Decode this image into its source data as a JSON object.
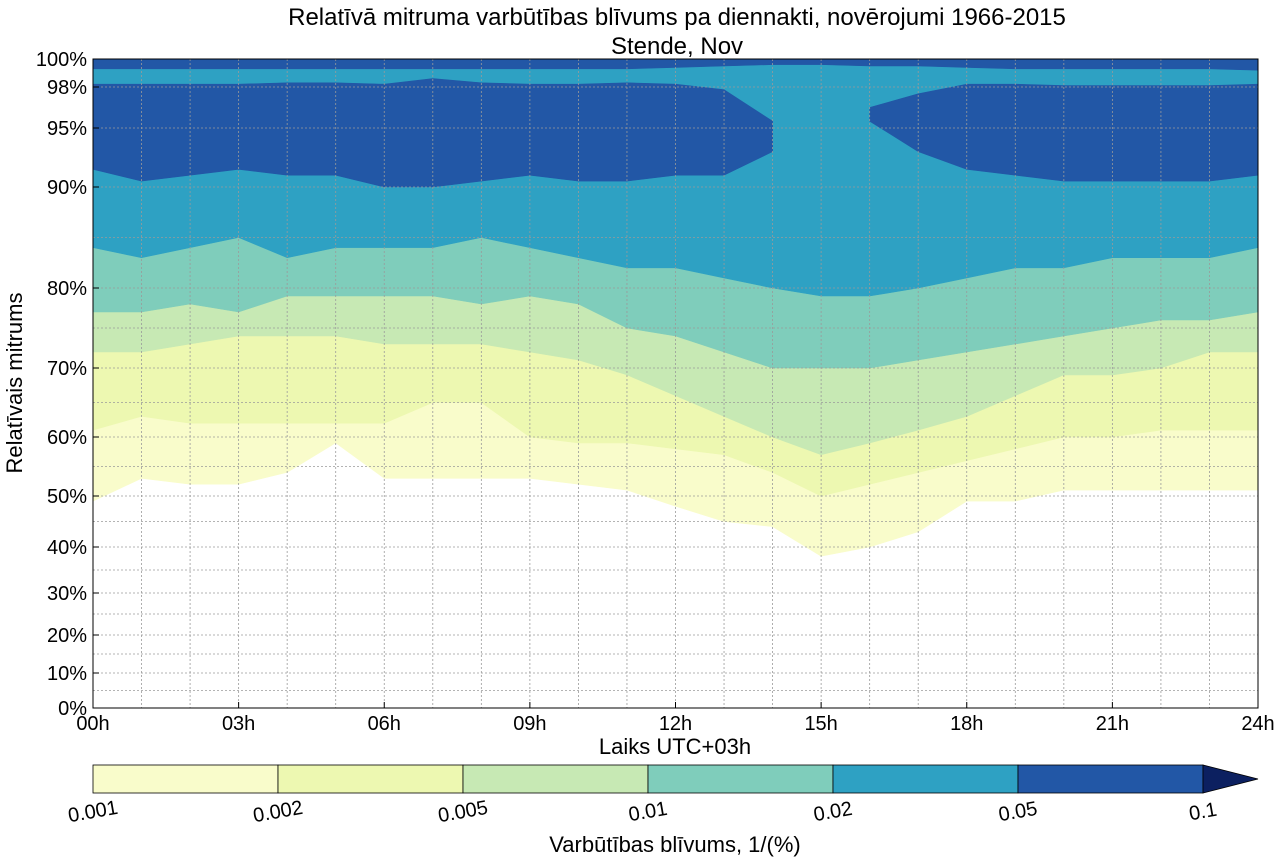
{
  "chart_data": {
    "type": "heatmap",
    "title": "Relatīvā mitruma varbūtības blīvums pa diennakti, novērojumi 1966-2015",
    "subtitle": "Stende, Nov",
    "xlabel": "Laiks UTC+03h",
    "ylabel": "Relatīvais mitrums",
    "x_ticks": [
      "00h",
      "03h",
      "06h",
      "09h",
      "12h",
      "15h",
      "18h",
      "21h",
      "24h"
    ],
    "x_tick_values": [
      0,
      3,
      6,
      9,
      12,
      15,
      18,
      21,
      24
    ],
    "y_ticks": [
      "0%",
      "10%",
      "20%",
      "30%",
      "40%",
      "50%",
      "60%",
      "70%",
      "80%",
      "90%",
      "95%",
      "98%",
      "100%"
    ],
    "y_tick_values": [
      0,
      10,
      20,
      30,
      40,
      50,
      60,
      70,
      80,
      90,
      95,
      98,
      100
    ],
    "xlim": [
      0,
      24
    ],
    "ylim": [
      0,
      100
    ],
    "y_scale": "nonlinear (stretched toward 100%)",
    "grid": true,
    "colorbar": {
      "label": "Varbūtības blīvums, 1/(%)",
      "tick_labels": [
        "0.001",
        "0.002",
        "0.005",
        "0.01",
        "0.02",
        "0.05",
        "0.1"
      ],
      "levels": [
        0.001,
        0.002,
        0.005,
        0.01,
        0.02,
        0.05,
        0.1
      ],
      "colors": [
        "#f9fccb",
        "#edf8b1",
        "#c7e9b4",
        "#7fcdbb",
        "#2ea1c3",
        "#2257a6",
        "#0c2060"
      ],
      "extend": "max"
    },
    "band_colors": [
      "#f9fccb",
      "#edf8b1",
      "#c7e9b4",
      "#7fcdbb",
      "#2ea1c3",
      "#2257a6"
    ],
    "contour_hours": [
      0,
      1,
      2,
      3,
      4,
      5,
      6,
      7,
      8,
      9,
      10,
      11,
      12,
      13,
      14,
      15,
      16,
      17,
      18,
      19,
      20,
      21,
      22,
      23,
      24
    ],
    "contours": [
      {
        "level": 0.001,
        "lower": [
          49,
          53,
          52,
          52,
          54,
          59,
          53,
          53,
          53,
          53,
          52,
          51,
          48,
          45,
          44,
          38,
          40,
          43,
          49,
          49,
          51,
          51,
          51,
          51,
          51
        ],
        "upper": [
          100,
          100,
          100,
          100,
          100,
          100,
          100,
          100,
          100,
          100,
          100,
          100,
          100,
          100,
          100,
          100,
          100,
          100,
          100,
          100,
          100,
          100,
          100,
          100,
          100
        ]
      },
      {
        "level": 0.002,
        "lower": [
          61,
          63,
          62,
          62,
          62,
          62,
          62,
          65,
          65,
          60,
          59,
          59,
          58,
          57,
          54,
          50,
          52,
          54,
          56,
          58,
          60,
          60,
          61,
          61,
          61
        ],
        "upper": [
          100,
          100,
          100,
          100,
          100,
          100,
          100,
          100,
          100,
          100,
          100,
          100,
          100,
          100,
          100,
          100,
          100,
          100,
          100,
          100,
          100,
          100,
          100,
          100,
          100
        ]
      },
      {
        "level": 0.005,
        "lower": [
          72,
          72,
          73,
          74,
          74,
          74,
          73,
          73,
          73,
          72,
          71,
          69,
          66,
          63,
          60,
          57,
          59,
          61,
          63,
          66,
          69,
          69,
          70,
          72,
          72
        ],
        "upper": [
          100,
          100,
          100,
          100,
          100,
          100,
          100,
          100,
          100,
          100,
          100,
          100,
          100,
          100,
          100,
          100,
          100,
          100,
          100,
          100,
          100,
          100,
          100,
          100,
          100
        ]
      },
      {
        "level": 0.01,
        "lower": [
          77,
          77,
          78,
          77,
          79,
          79,
          79,
          79,
          78,
          79,
          78,
          75,
          74,
          72,
          70,
          70,
          70,
          71,
          72,
          73,
          74,
          75,
          76,
          76,
          77
        ],
        "upper": [
          100,
          100,
          100,
          100,
          100,
          100,
          100,
          100,
          100,
          100,
          100,
          100,
          100,
          100,
          100,
          100,
          100,
          100,
          100,
          100,
          100,
          100,
          100,
          100,
          100
        ]
      },
      {
        "level": 0.02,
        "lower": [
          84,
          83,
          84,
          85,
          83,
          84,
          84,
          84,
          85,
          84,
          83,
          82,
          82,
          81,
          80,
          79,
          79,
          80,
          81,
          82,
          82,
          83,
          83,
          83,
          84
        ],
        "upper": [
          100,
          100,
          100,
          100,
          100,
          100,
          100,
          100,
          100,
          100,
          100,
          100,
          100,
          100,
          100,
          100,
          100,
          100,
          100,
          100,
          100,
          100,
          100,
          100,
          100
        ]
      },
      {
        "level": 0.05,
        "lower": [
          91.5,
          90.5,
          91,
          91.5,
          91,
          91,
          90,
          90,
          90.5,
          91,
          90.5,
          90.5,
          91,
          91,
          93,
          null,
          95.5,
          93,
          91.5,
          91,
          90.5,
          90.5,
          90.5,
          90.5,
          91
        ],
        "upper": [
          98.2,
          98.2,
          98.2,
          98.2,
          98.3,
          98.3,
          98.2,
          98.6,
          98.3,
          98.2,
          98.2,
          98.3,
          98.2,
          97.8,
          95.5,
          null,
          96.5,
          97.5,
          98.2,
          98.2,
          98.1,
          98.1,
          98.1,
          98.1,
          98.2
        ]
      },
      {
        "level": 0.05,
        "lower": [
          99.3,
          99.3,
          99.3,
          99.3,
          99.3,
          99.3,
          99.3,
          99.3,
          99.3,
          99.3,
          99.3,
          99.3,
          99.4,
          99.5,
          99.6,
          99.6,
          99.5,
          99.5,
          99.4,
          99.3,
          99.3,
          99.3,
          99.3,
          99.3,
          99.2
        ],
        "upper": [
          100,
          100,
          100,
          100,
          100,
          100,
          100,
          100,
          100,
          100,
          100,
          100,
          100,
          100,
          100,
          100,
          100,
          100,
          100,
          100,
          100,
          100,
          100,
          100,
          100
        ]
      }
    ]
  }
}
